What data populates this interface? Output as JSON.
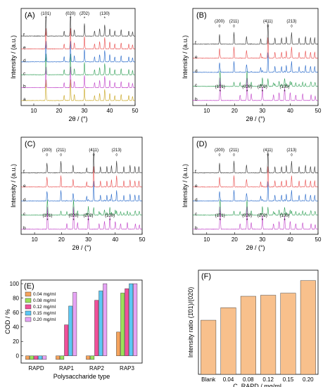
{
  "xrd_panels": [
    {
      "label": "(A)",
      "ylabel": "Intensity / (a.u.)",
      "xlabel": "2θ / (°)",
      "x_ticks": [
        10,
        20,
        30,
        40,
        50
      ],
      "curves": [
        {
          "label": "a",
          "color": "#c7a41c"
        },
        {
          "label": "b",
          "color": "#c040c8"
        },
        {
          "label": "c",
          "color": "#2e9e54"
        },
        {
          "label": "d",
          "color": "#2467c9"
        },
        {
          "label": "e",
          "color": "#e84a4a"
        },
        {
          "label": "f",
          "color": "#333333"
        }
      ],
      "peak_labels": [
        {
          "text": "(101)",
          "marker": "*",
          "x": 14.8
        },
        {
          "text": "(020)",
          "marker": "*",
          "x": 24.5
        },
        {
          "text": "(2̄02)",
          "marker": "*",
          "x": 30.0
        },
        {
          "text": "(130)",
          "marker": "*",
          "x": 38.0
        }
      ]
    },
    {
      "label": "(B)",
      "ylabel": "Intensity / (a.u.)",
      "xlabel": "2θ / (°)",
      "x_ticks": [
        10,
        20,
        30,
        40,
        50
      ],
      "curves": [
        {
          "label": "b",
          "color": "#c040c8"
        },
        {
          "label": "c",
          "color": "#2e9e54"
        },
        {
          "label": "d",
          "color": "#2467c9"
        },
        {
          "label": "e",
          "color": "#e84a4a"
        },
        {
          "label": "f",
          "color": "#333333"
        }
      ],
      "peak_labels": [
        {
          "text": "(200)",
          "marker": "◊",
          "x": 14.6
        },
        {
          "text": "(211)",
          "marker": "◊",
          "x": 19.8
        },
        {
          "text": "(411)",
          "marker": "◊",
          "x": 32.0
        },
        {
          "text": "(213)",
          "marker": "◊",
          "x": 40.5
        }
      ],
      "lower_peak_labels": [
        {
          "text": "(101)",
          "marker": "*",
          "x": 14.8
        },
        {
          "text": "(020)",
          "marker": "*",
          "x": 24.5
        },
        {
          "text": "(2̄02)",
          "marker": "*",
          "x": 30.0
        },
        {
          "text": "(130)",
          "marker": "*",
          "x": 38.0
        }
      ]
    },
    {
      "label": "(C)",
      "ylabel": "Intensity / (a.u.)",
      "xlabel": "2θ / (°)",
      "x_ticks": [
        10,
        20,
        30,
        40,
        50
      ],
      "curves": [
        {
          "label": "b",
          "color": "#c040c8"
        },
        {
          "label": "c",
          "color": "#2e9e54"
        },
        {
          "label": "d",
          "color": "#2467c9"
        },
        {
          "label": "e",
          "color": "#e84a4a"
        },
        {
          "label": "f",
          "color": "#333333"
        }
      ],
      "peak_labels": [
        {
          "text": "(200)",
          "marker": "◊",
          "x": 14.6
        },
        {
          "text": "(211)",
          "marker": "◊",
          "x": 19.8
        },
        {
          "text": "(411)",
          "marker": "◊",
          "x": 32.0
        },
        {
          "text": "(213)",
          "marker": "◊",
          "x": 40.5
        }
      ],
      "lower_peak_labels": [
        {
          "text": "(101)",
          "marker": "*",
          "x": 14.8
        },
        {
          "text": "(020)",
          "marker": "*",
          "x": 24.5
        },
        {
          "text": "(2̄02)",
          "marker": "*",
          "x": 30.0
        },
        {
          "text": "(130)",
          "marker": "*",
          "x": 38.0
        }
      ]
    },
    {
      "label": "(D)",
      "ylabel": "Intensity / (a.u.)",
      "xlabel": "2θ / (°)",
      "x_ticks": [
        10,
        20,
        30,
        40,
        50
      ],
      "curves": [
        {
          "label": "b",
          "color": "#c040c8"
        },
        {
          "label": "c",
          "color": "#2e9e54"
        },
        {
          "label": "d",
          "color": "#2467c9"
        },
        {
          "label": "e",
          "color": "#e84a4a"
        },
        {
          "label": "f",
          "color": "#333333"
        }
      ],
      "peak_labels": [
        {
          "text": "(200)",
          "marker": "◊",
          "x": 14.6
        },
        {
          "text": "(211)",
          "marker": "◊",
          "x": 19.8
        },
        {
          "text": "(411)",
          "marker": "◊",
          "x": 32.0
        },
        {
          "text": "(213)",
          "marker": "◊",
          "x": 40.5
        }
      ],
      "lower_peak_labels": [
        {
          "text": "(1̄01)",
          "marker": "*",
          "x": 14.8
        },
        {
          "text": "(020)",
          "marker": "*",
          "x": 24.5
        },
        {
          "text": "(2̄02)",
          "marker": "*",
          "x": 30.0
        },
        {
          "text": "(130)",
          "marker": "*",
          "x": 38.0
        }
      ]
    }
  ],
  "chart_data": [
    {
      "panel": "(E)",
      "type": "bar",
      "categories": [
        "RAPD",
        "RAP1",
        "RAP2",
        "RAP3"
      ],
      "xlabel": "Polysaccharide type",
      "ylabel": "COD / %",
      "ylim": [
        -10,
        105
      ],
      "yticks": [
        0,
        20,
        40,
        60,
        80,
        100
      ],
      "legend_position": "top-left",
      "series": [
        {
          "name": "0.04 mg/ml",
          "color": "#f5a35c",
          "values": [
            -5,
            -5,
            -5,
            33
          ]
        },
        {
          "name": "0.08 mg/ml",
          "color": "#9be15a",
          "values": [
            -5,
            -5,
            -5,
            87
          ]
        },
        {
          "name": "0.12 mg/ml",
          "color": "#f0509a",
          "values": [
            -5,
            43,
            77,
            93
          ]
        },
        {
          "name": "0.15 mg/ml",
          "color": "#5cc8f5",
          "values": [
            -5,
            69,
            90,
            100
          ]
        },
        {
          "name": "0.20 mg/ml",
          "color": "#e6a3f5",
          "values": [
            -5,
            88,
            100,
            100
          ]
        }
      ]
    },
    {
      "panel": "(F)",
      "type": "bar",
      "categories": [
        "Blank",
        "0.04",
        "0.08",
        "0.12",
        "0.15",
        "0.20"
      ],
      "xlabel": "C_RAPD / mg/mL",
      "ylabel": "Intensity ratio (1̄01)/(020)",
      "ylim": [
        0,
        1.0
      ],
      "color": "#f8c08c",
      "values": [
        0.52,
        0.64,
        0.75,
        0.76,
        0.78,
        0.9
      ]
    }
  ]
}
